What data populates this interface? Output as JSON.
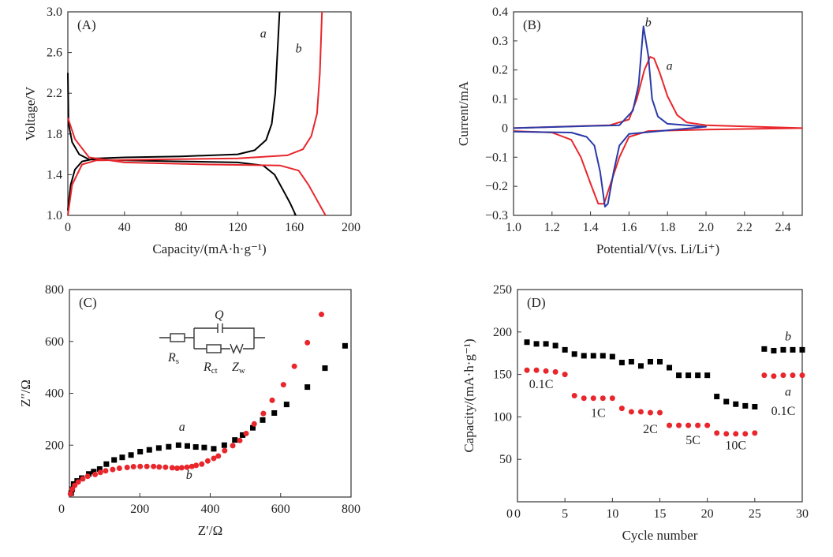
{
  "chart_data": [
    {
      "panel": "(A)",
      "type": "line",
      "xlabel": "Capacity/(mA·h·g⁻¹)",
      "ylabel": "Voltage/V",
      "xlim": [
        0,
        200
      ],
      "ylim": [
        1.0,
        3.0
      ],
      "xticks": [
        0,
        40,
        80,
        120,
        160,
        200
      ],
      "xticklabels": [
        "0",
        "40",
        "80",
        "120",
        "160",
        "200"
      ],
      "yticks": [
        1.0,
        1.4,
        1.8,
        2.2,
        2.6,
        3.0
      ],
      "yticklabels": [
        "1.0",
        "1.4",
        "1.8",
        "2.2",
        "2.6",
        "3.0"
      ],
      "series": [
        {
          "name": "a",
          "color": "#000000",
          "part": "charge",
          "points": [
            [
              0,
              1.05
            ],
            [
              2,
              1.3
            ],
            [
              5,
              1.45
            ],
            [
              10,
              1.53
            ],
            [
              20,
              1.56
            ],
            [
              40,
              1.57
            ],
            [
              80,
              1.58
            ],
            [
              120,
              1.6
            ],
            [
              132,
              1.64
            ],
            [
              140,
              1.74
            ],
            [
              144,
              1.9
            ],
            [
              146.5,
              2.2
            ],
            [
              148,
              2.6
            ],
            [
              149.5,
              3.0
            ]
          ]
        },
        {
          "name": "a",
          "color": "#000000",
          "part": "discharge",
          "points": [
            [
              0,
              2.4
            ],
            [
              0.5,
              1.9
            ],
            [
              3,
              1.72
            ],
            [
              8,
              1.6
            ],
            [
              15,
              1.55
            ],
            [
              40,
              1.54
            ],
            [
              80,
              1.53
            ],
            [
              120,
              1.52
            ],
            [
              138,
              1.49
            ],
            [
              146,
              1.4
            ],
            [
              152,
              1.25
            ],
            [
              157,
              1.12
            ],
            [
              161,
              1.0
            ]
          ]
        },
        {
          "name": "b",
          "color": "#e8262b",
          "part": "charge",
          "points": [
            [
              0,
              1.0
            ],
            [
              3,
              1.3
            ],
            [
              10,
              1.5
            ],
            [
              20,
              1.54
            ],
            [
              60,
              1.55
            ],
            [
              120,
              1.56
            ],
            [
              155,
              1.59
            ],
            [
              166,
              1.65
            ],
            [
              172,
              1.78
            ],
            [
              176,
              2.0
            ],
            [
              178,
              2.4
            ],
            [
              179.5,
              3.0
            ]
          ]
        },
        {
          "name": "b",
          "color": "#e8262b",
          "part": "discharge",
          "points": [
            [
              0,
              1.96
            ],
            [
              5,
              1.75
            ],
            [
              15,
              1.57
            ],
            [
              40,
              1.52
            ],
            [
              100,
              1.5
            ],
            [
              150,
              1.49
            ],
            [
              163,
              1.44
            ],
            [
              170,
              1.3
            ],
            [
              176,
              1.15
            ],
            [
              182,
              1.0
            ]
          ]
        }
      ],
      "annotations": [
        {
          "text": "a",
          "x": 138,
          "y": 2.75
        },
        {
          "text": "b",
          "x": 163,
          "y": 2.6
        }
      ]
    },
    {
      "panel": "(B)",
      "type": "line",
      "xlabel": "Potential/V(vs. Li/Li⁺)",
      "ylabel": "Current/mA",
      "xlim": [
        1.0,
        2.5
      ],
      "ylim": [
        -0.3,
        0.4
      ],
      "xticks": [
        1.0,
        1.2,
        1.4,
        1.6,
        1.8,
        2.0,
        2.2,
        2.4
      ],
      "xticklabels": [
        "1.0",
        "1.2",
        "1.4",
        "1.6",
        "1.8",
        "2.0",
        "2.2",
        "2.4"
      ],
      "yticks": [
        -0.3,
        -0.2,
        -0.1,
        0,
        0.1,
        0.2,
        0.3,
        0.4
      ],
      "yticklabels": [
        "−0.3",
        "−0.2",
        "−0.1",
        "0",
        "0.1",
        "0.2",
        "0.3",
        "0.4"
      ],
      "series": [
        {
          "name": "a",
          "color": "#e8262b",
          "points": [
            [
              1.0,
              0.0
            ],
            [
              1.5,
              0.01
            ],
            [
              1.6,
              0.03
            ],
            [
              1.64,
              0.1
            ],
            [
              1.68,
              0.2
            ],
            [
              1.71,
              0.245
            ],
            [
              1.73,
              0.24
            ],
            [
              1.76,
              0.19
            ],
            [
              1.8,
              0.11
            ],
            [
              1.85,
              0.045
            ],
            [
              1.9,
              0.02
            ],
            [
              2.0,
              0.01
            ],
            [
              2.5,
              0.0
            ],
            [
              2.0,
              -0.005
            ],
            [
              1.7,
              -0.01
            ],
            [
              1.6,
              -0.03
            ],
            [
              1.55,
              -0.1
            ],
            [
              1.5,
              -0.2
            ],
            [
              1.47,
              -0.26
            ],
            [
              1.44,
              -0.26
            ],
            [
              1.4,
              -0.19
            ],
            [
              1.35,
              -0.1
            ],
            [
              1.3,
              -0.04
            ],
            [
              1.2,
              -0.015
            ],
            [
              1.0,
              -0.01
            ]
          ]
        },
        {
          "name": "b",
          "color": "#2a3aa8",
          "points": [
            [
              1.0,
              0.0
            ],
            [
              1.55,
              0.01
            ],
            [
              1.62,
              0.06
            ],
            [
              1.65,
              0.15
            ],
            [
              1.675,
              0.35
            ],
            [
              1.7,
              0.25
            ],
            [
              1.72,
              0.1
            ],
            [
              1.75,
              0.04
            ],
            [
              1.8,
              0.015
            ],
            [
              2.0,
              0.005
            ],
            [
              1.6,
              -0.02
            ],
            [
              1.55,
              -0.06
            ],
            [
              1.52,
              -0.15
            ],
            [
              1.49,
              -0.26
            ],
            [
              1.475,
              -0.27
            ],
            [
              1.45,
              -0.15
            ],
            [
              1.42,
              -0.06
            ],
            [
              1.38,
              -0.03
            ],
            [
              1.3,
              -0.015
            ],
            [
              1.0,
              -0.012
            ]
          ]
        }
      ],
      "annotations": [
        {
          "text": "b",
          "x": 1.7,
          "y": 0.35
        },
        {
          "text": "a",
          "x": 1.81,
          "y": 0.2
        }
      ]
    },
    {
      "panel": "(C)",
      "type": "scatter",
      "xlabel": "Z′/Ω",
      "ylabel": "Z″/Ω",
      "xlim": [
        0,
        800
      ],
      "ylim": [
        0,
        800
      ],
      "xticks": [
        200,
        400,
        600,
        800
      ],
      "xticklabels": [
        "200",
        "400",
        "600",
        "800"
      ],
      "yticks": [
        200,
        400,
        600,
        800
      ],
      "yticklabels": [
        "200",
        "400",
        "600",
        "800"
      ],
      "origin_label": "0",
      "series": [
        {
          "name": "a",
          "color": "#000000",
          "marker": "square",
          "points": [
            [
              12,
              50
            ],
            [
              22,
              62
            ],
            [
              35,
              73
            ],
            [
              55,
              89
            ],
            [
              69,
              98
            ],
            [
              86,
              108
            ],
            [
              105,
              127
            ],
            [
              127,
              143
            ],
            [
              150,
              153
            ],
            [
              175,
              162
            ],
            [
              201,
              175
            ],
            [
              227,
              182
            ],
            [
              254,
              189
            ],
            [
              282,
              194
            ],
            [
              310,
              200
            ],
            [
              335,
              197
            ],
            [
              359,
              193
            ],
            [
              383,
              191
            ],
            [
              410,
              186
            ],
            [
              440,
              200
            ],
            [
              470,
              220
            ],
            [
              492,
              239
            ],
            [
              521,
              267
            ],
            [
              549,
              297
            ],
            [
              582,
              324
            ],
            [
              617,
              357
            ],
            [
              676,
              424
            ],
            [
              726,
              497
            ],
            [
              783,
              583
            ],
            [
              5,
              15
            ],
            [
              8,
              30
            ]
          ]
        },
        {
          "name": "b",
          "color": "#e8262b",
          "marker": "circle",
          "points": [
            [
              3,
              12
            ],
            [
              8,
              30
            ],
            [
              15,
              45
            ],
            [
              25,
              58
            ],
            [
              38,
              70
            ],
            [
              52,
              80
            ],
            [
              73,
              87
            ],
            [
              88,
              95
            ],
            [
              103,
              101
            ],
            [
              123,
              106
            ],
            [
              142,
              111
            ],
            [
              164,
              114
            ],
            [
              182,
              117
            ],
            [
              201,
              118
            ],
            [
              220,
              118
            ],
            [
              239,
              118
            ],
            [
              255,
              116
            ],
            [
              273,
              115
            ],
            [
              292,
              113
            ],
            [
              306,
              111
            ],
            [
              319,
              113
            ],
            [
              334,
              115
            ],
            [
              348,
              118
            ],
            [
              360,
              122
            ],
            [
              376,
              127
            ],
            [
              393,
              139
            ],
            [
              410,
              149
            ],
            [
              423,
              158
            ],
            [
              441,
              179
            ],
            [
              464,
              198
            ],
            [
              484,
              218
            ],
            [
              502,
              245
            ],
            [
              525,
              282
            ],
            [
              551,
              322
            ],
            [
              576,
              373
            ],
            [
              608,
              433
            ],
            [
              639,
              504
            ],
            [
              676,
              595
            ],
            [
              716,
              704
            ]
          ]
        }
      ],
      "annotations": [
        {
          "text": "a",
          "x": 320,
          "y": 255
        },
        {
          "text": "b",
          "x": 340,
          "y": 70
        }
      ],
      "inset": {
        "Q": "Q",
        "Rs": "R",
        "Rs_sub": "s",
        "Rct": "R",
        "Rct_sub": "ct",
        "Zw": "Z",
        "Zw_sub": "w"
      }
    },
    {
      "panel": "(D)",
      "type": "scatter",
      "xlabel": "Cycle number",
      "ylabel": "Capacity/(mA·h·g⁻¹)",
      "xlim": [
        0,
        30
      ],
      "ylim": [
        0,
        250
      ],
      "xticks": [
        0,
        5,
        10,
        15,
        20,
        25,
        30
      ],
      "xticklabels": [
        "0",
        "5",
        "10",
        "15",
        "20",
        "25",
        "30"
      ],
      "yticks": [
        50,
        100,
        150,
        200,
        250
      ],
      "yticklabels": [
        "50",
        "100",
        "150",
        "200",
        "250"
      ],
      "origin_label": "0",
      "x": [
        1,
        2,
        3,
        4,
        5,
        6,
        7,
        8,
        9,
        10,
        11,
        12,
        13,
        14,
        15,
        16,
        17,
        18,
        19,
        20,
        21,
        22,
        23,
        24,
        25,
        26,
        27,
        28,
        29,
        30
      ],
      "series": [
        {
          "name": "b",
          "color": "#000000",
          "marker": "square",
          "values": [
            188,
            186,
            186,
            184,
            179,
            174,
            172,
            172,
            172,
            171,
            164,
            165,
            160,
            165,
            165,
            158,
            149,
            149,
            149,
            149,
            124,
            118,
            115,
            113,
            112,
            180,
            178,
            179,
            179,
            179
          ]
        },
        {
          "name": "a",
          "color": "#e8262b",
          "marker": "circle",
          "values": [
            155,
            155,
            154,
            153,
            150,
            125,
            122,
            122,
            122,
            122,
            110,
            106,
            106,
            105,
            105,
            90,
            90,
            90,
            90,
            90,
            81,
            80,
            80,
            80,
            81,
            149,
            148,
            149,
            149,
            149
          ]
        }
      ],
      "annotations": [
        {
          "text": "0.1C",
          "x": 2.5,
          "y": 134
        },
        {
          "text": "1C",
          "x": 8.5,
          "y": 100
        },
        {
          "text": "2C",
          "x": 14,
          "y": 81
        },
        {
          "text": "5C",
          "x": 18.5,
          "y": 68
        },
        {
          "text": "10C",
          "x": 23,
          "y": 62
        },
        {
          "text": "0.1C",
          "x": 28,
          "y": 102
        },
        {
          "text": "b",
          "x": 28.5,
          "y": 190
        },
        {
          "text": "a",
          "x": 28.5,
          "y": 125
        }
      ]
    }
  ]
}
